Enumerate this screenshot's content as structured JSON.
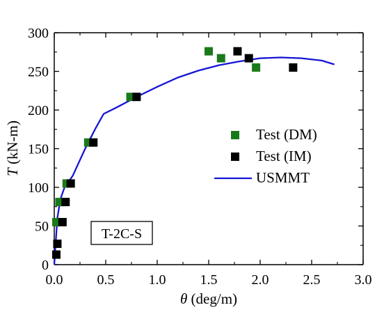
{
  "chart_data": {
    "type": "scatter",
    "title": "",
    "xlabel_symbol": "θ",
    "xlabel_unit": " (deg/m)",
    "ylabel_symbol": "T",
    "ylabel_unit": " (kN-m)",
    "xlim": [
      0.0,
      3.0
    ],
    "ylim": [
      0,
      300
    ],
    "xticks": [
      0.0,
      0.5,
      1.0,
      1.5,
      2.0,
      2.5,
      3.0
    ],
    "xtick_labels": [
      "0.0",
      "0.5",
      "1.0",
      "1.5",
      "2.0",
      "2.5",
      "3.0"
    ],
    "yticks": [
      0,
      50,
      100,
      150,
      200,
      250,
      300
    ],
    "ytick_labels": [
      "0",
      "50",
      "100",
      "150",
      "200",
      "250",
      "300"
    ],
    "grid": false,
    "legend_position": "right",
    "annotation": "T-2C-S",
    "series": [
      {
        "name": "Test (DM)",
        "kind": "square-marker",
        "color": "#1a7a1a",
        "x": [
          0.02,
          0.05,
          0.12,
          0.33,
          0.74,
          1.5,
          1.62,
          1.96
        ],
        "y": [
          55,
          81,
          105,
          158,
          217,
          276,
          267,
          255
        ]
      },
      {
        "name": "Test (IM)",
        "kind": "square-marker",
        "color": "#000000",
        "x": [
          0.02,
          0.03,
          0.08,
          0.11,
          0.16,
          0.38,
          0.8,
          1.78,
          1.89,
          2.32
        ],
        "y": [
          13,
          27,
          55,
          81,
          105,
          158,
          217,
          276,
          267,
          255
        ]
      },
      {
        "name": "USMMT",
        "kind": "line",
        "color": "#1515d6",
        "x": [
          0.0,
          0.03,
          0.06,
          0.1,
          0.18,
          0.3,
          0.4,
          0.48,
          0.6,
          0.8,
          1.0,
          1.2,
          1.4,
          1.6,
          1.8,
          2.0,
          2.2,
          2.4,
          2.6,
          2.72
        ],
        "y": [
          0,
          60,
          85,
          100,
          115,
          150,
          176,
          195,
          203,
          217,
          230,
          242,
          251,
          258,
          263,
          267,
          268,
          267,
          264,
          259
        ]
      }
    ]
  }
}
